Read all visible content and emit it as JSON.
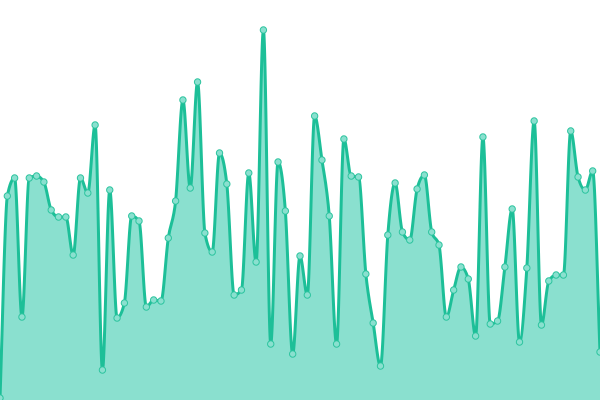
{
  "chart_data": {
    "type": "area",
    "title": "",
    "xlabel": "",
    "ylabel": "",
    "ylim": [
      0,
      400
    ],
    "grid": false,
    "legend": "none",
    "curve": "smooth",
    "show_points": true,
    "colors": {
      "line": "#1dbf98",
      "fill": "#8ae0cf",
      "point_fill": "#8ae0cf",
      "point_stroke": "#2ec49f"
    },
    "values": [
      2,
      204,
      222,
      83,
      222,
      224,
      218,
      190,
      183,
      183,
      145,
      222,
      207,
      275,
      30,
      210,
      82,
      97,
      184,
      179,
      93,
      100,
      99,
      162,
      199,
      300,
      212,
      318,
      167,
      148,
      247,
      216,
      105,
      110,
      227,
      138,
      370,
      56,
      238,
      189,
      46,
      144,
      105,
      284,
      240,
      184,
      56,
      261,
      224,
      223,
      126,
      77,
      34,
      165,
      217,
      168,
      160,
      211,
      225,
      168,
      155,
      83,
      110,
      133,
      121,
      64,
      263,
      76,
      79,
      133,
      191,
      58,
      132,
      279,
      75,
      119,
      125,
      125,
      269,
      223,
      210,
      229,
      48
    ]
  }
}
